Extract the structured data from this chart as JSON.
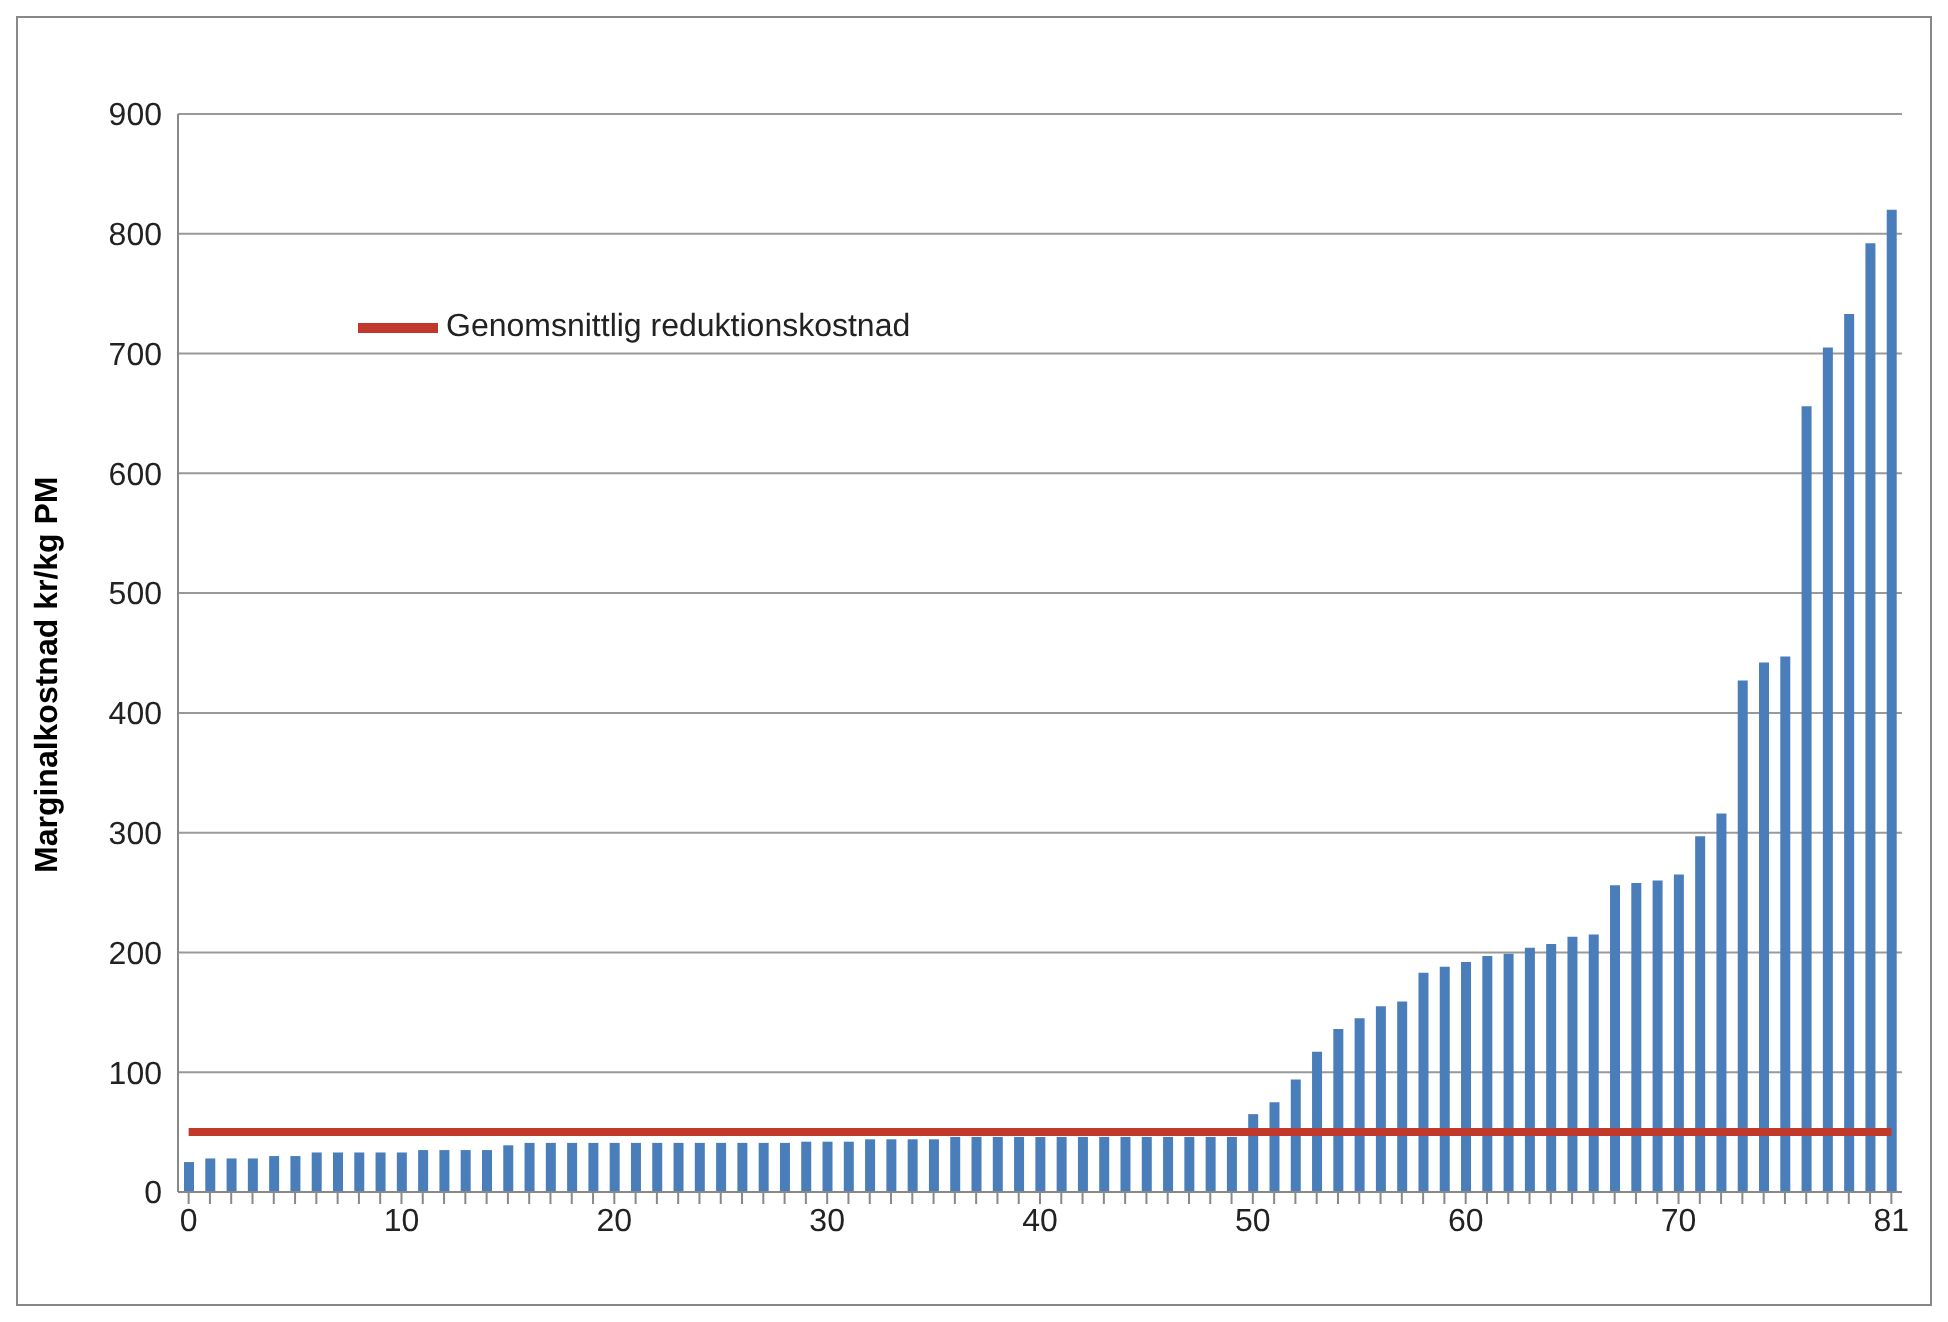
{
  "chart_data": {
    "type": "bar",
    "ylabel": "Marginalkostnad  kr/kg PM",
    "categories": [
      "0",
      null,
      null,
      null,
      null,
      null,
      null,
      null,
      null,
      null,
      "10",
      null,
      null,
      null,
      null,
      null,
      null,
      null,
      null,
      null,
      "20",
      null,
      null,
      null,
      null,
      null,
      null,
      null,
      null,
      null,
      "30",
      null,
      null,
      null,
      null,
      null,
      null,
      null,
      null,
      null,
      "40",
      null,
      null,
      null,
      null,
      null,
      null,
      null,
      null,
      null,
      "50",
      null,
      null,
      null,
      null,
      null,
      null,
      null,
      null,
      null,
      "60",
      null,
      null,
      null,
      null,
      null,
      null,
      null,
      null,
      null,
      "70",
      null,
      null,
      null,
      null,
      null,
      null,
      null,
      null,
      null,
      "81"
    ],
    "series": [
      {
        "color": "#4a7ebb",
        "values": [
          25,
          28,
          28,
          28,
          30,
          30,
          33,
          33,
          33,
          33,
          33,
          35,
          35,
          35,
          35,
          39,
          41,
          41,
          41,
          41,
          41,
          41,
          41,
          41,
          41,
          41,
          41,
          41,
          41,
          42,
          42,
          42,
          44,
          44,
          44,
          44,
          46,
          46,
          46,
          46,
          46,
          46,
          46,
          46,
          46,
          46,
          46,
          46,
          46,
          46,
          65,
          75,
          94,
          117,
          136,
          145,
          155,
          159,
          183,
          188,
          192,
          197,
          199,
          204,
          207,
          213,
          215,
          256,
          258,
          260,
          265,
          297,
          316,
          427,
          442,
          447,
          656,
          705,
          733,
          792,
          820
        ]
      },
      {
        "type": "line",
        "name": "Genomsnittlig reduktionskostnad",
        "color": "#c0392b",
        "values": [
          50,
          50,
          50,
          50,
          50,
          50,
          50,
          50,
          50,
          50,
          50,
          50,
          50,
          50,
          50,
          50,
          50,
          50,
          50,
          50,
          50,
          50,
          50,
          50,
          50,
          50,
          50,
          50,
          50,
          50,
          50,
          50,
          50,
          50,
          50,
          50,
          50,
          50,
          50,
          50,
          50,
          50,
          50,
          50,
          50,
          50,
          50,
          50,
          50,
          50,
          50,
          50,
          50,
          50,
          50,
          50,
          50,
          50,
          50,
          50,
          50,
          50,
          50,
          50,
          50,
          50,
          50,
          50,
          50,
          50,
          50,
          50,
          50,
          50,
          50,
          50,
          50,
          50,
          50,
          50,
          50
        ]
      }
    ],
    "ylim": [
      0,
      900
    ],
    "yticks": [
      0,
      100,
      200,
      300,
      400,
      500,
      600,
      700,
      800,
      900
    ],
    "grid": "y",
    "legend": "top left",
    "marker": "none"
  }
}
